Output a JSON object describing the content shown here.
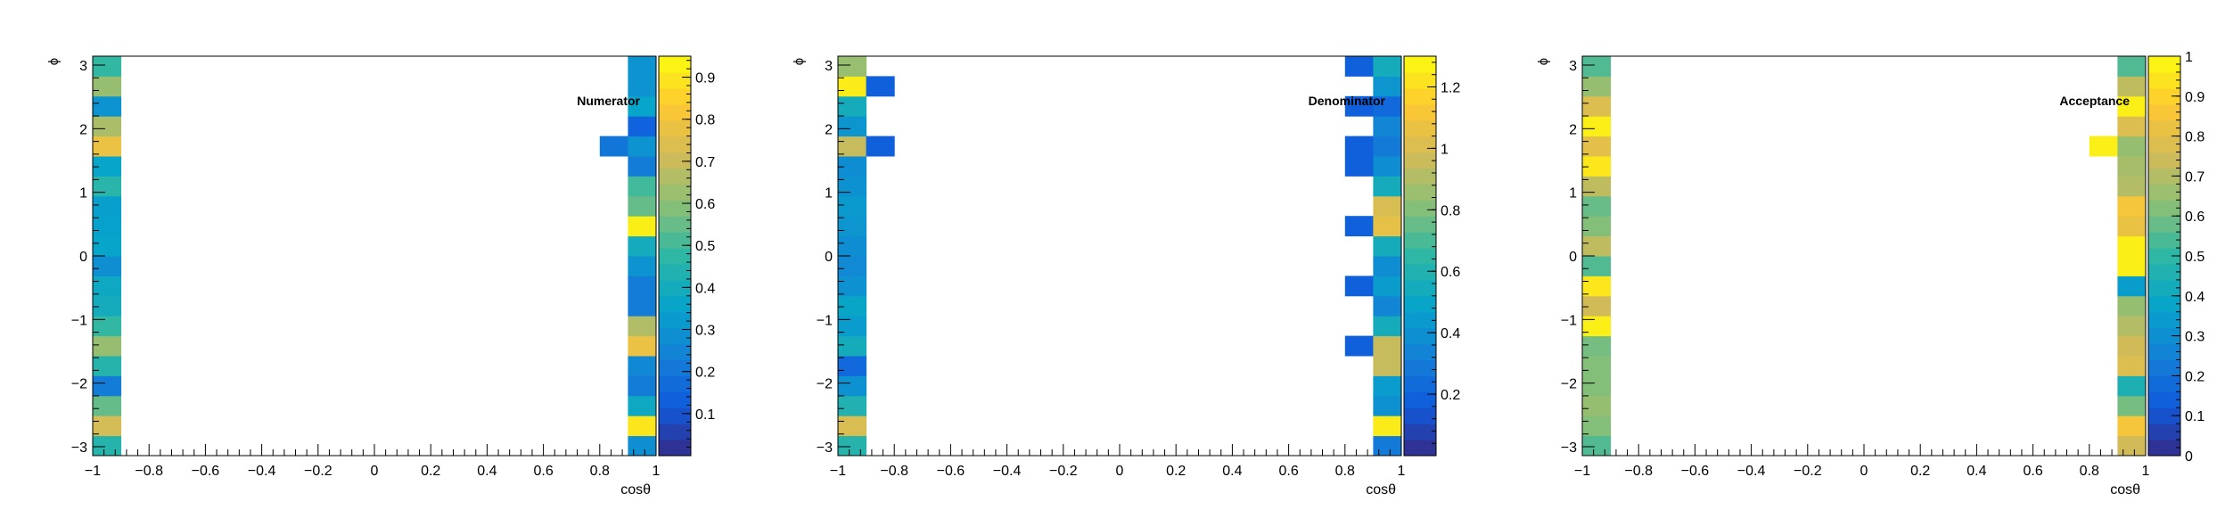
{
  "chart_data": [
    {
      "type": "heatmap",
      "title": "Numerator",
      "xlabel": "cosθ",
      "ylabel": "ϕ",
      "xlim": [
        -1,
        1
      ],
      "ylim": [
        -3.14,
        3.14
      ],
      "x_ticks": [
        "−1",
        "−0.8",
        "−0.6",
        "−0.4",
        "−0.2",
        "0",
        "0.2",
        "0.4",
        "0.6",
        "0.8",
        "1"
      ],
      "y_ticks": [
        "−3",
        "−2",
        "−1",
        "0",
        "1",
        "2",
        "3"
      ],
      "zlim": [
        0,
        0.95
      ],
      "z_ticks": [
        "0.1",
        "0.2",
        "0.3",
        "0.4",
        "0.5",
        "0.6",
        "0.7",
        "0.8",
        "0.9"
      ],
      "x_bins": 20,
      "y_bins": 20,
      "cells": [
        {
          "x_bin": 0,
          "y_bin": 0,
          "value": 0.45
        },
        {
          "x_bin": 0,
          "y_bin": 1,
          "value": 0.72
        },
        {
          "x_bin": 0,
          "y_bin": 2,
          "value": 0.55
        },
        {
          "x_bin": 0,
          "y_bin": 3,
          "value": 0.22
        },
        {
          "x_bin": 0,
          "y_bin": 4,
          "value": 0.45
        },
        {
          "x_bin": 0,
          "y_bin": 5,
          "value": 0.62
        },
        {
          "x_bin": 0,
          "y_bin": 6,
          "value": 0.48
        },
        {
          "x_bin": 0,
          "y_bin": 7,
          "value": 0.4
        },
        {
          "x_bin": 0,
          "y_bin": 8,
          "value": 0.38
        },
        {
          "x_bin": 0,
          "y_bin": 9,
          "value": 0.28
        },
        {
          "x_bin": 0,
          "y_bin": 10,
          "value": 0.36
        },
        {
          "x_bin": 0,
          "y_bin": 11,
          "value": 0.35
        },
        {
          "x_bin": 0,
          "y_bin": 12,
          "value": 0.34
        },
        {
          "x_bin": 0,
          "y_bin": 13,
          "value": 0.46
        },
        {
          "x_bin": 0,
          "y_bin": 14,
          "value": 0.36
        },
        {
          "x_bin": 0,
          "y_bin": 15,
          "value": 0.78
        },
        {
          "x_bin": 0,
          "y_bin": 16,
          "value": 0.65
        },
        {
          "x_bin": 0,
          "y_bin": 17,
          "value": 0.3
        },
        {
          "x_bin": 0,
          "y_bin": 18,
          "value": 0.62
        },
        {
          "x_bin": 0,
          "y_bin": 19,
          "value": 0.48
        },
        {
          "x_bin": 18,
          "y_bin": 15,
          "value": 0.2
        },
        {
          "x_bin": 19,
          "y_bin": 0,
          "value": 0.28
        },
        {
          "x_bin": 19,
          "y_bin": 1,
          "value": 0.9
        },
        {
          "x_bin": 19,
          "y_bin": 2,
          "value": 0.38
        },
        {
          "x_bin": 19,
          "y_bin": 3,
          "value": 0.22
        },
        {
          "x_bin": 19,
          "y_bin": 4,
          "value": 0.26
        },
        {
          "x_bin": 19,
          "y_bin": 5,
          "value": 0.78
        },
        {
          "x_bin": 19,
          "y_bin": 6,
          "value": 0.66
        },
        {
          "x_bin": 19,
          "y_bin": 7,
          "value": 0.22
        },
        {
          "x_bin": 19,
          "y_bin": 8,
          "value": 0.22
        },
        {
          "x_bin": 19,
          "y_bin": 9,
          "value": 0.3
        },
        {
          "x_bin": 19,
          "y_bin": 10,
          "value": 0.4
        },
        {
          "x_bin": 19,
          "y_bin": 11,
          "value": 0.92
        },
        {
          "x_bin": 19,
          "y_bin": 12,
          "value": 0.55
        },
        {
          "x_bin": 19,
          "y_bin": 13,
          "value": 0.5
        },
        {
          "x_bin": 19,
          "y_bin": 14,
          "value": 0.22
        },
        {
          "x_bin": 19,
          "y_bin": 15,
          "value": 0.3
        },
        {
          "x_bin": 19,
          "y_bin": 16,
          "value": 0.14
        },
        {
          "x_bin": 19,
          "y_bin": 17,
          "value": 0.36
        },
        {
          "x_bin": 19,
          "y_bin": 18,
          "value": 0.3
        },
        {
          "x_bin": 19,
          "y_bin": 19,
          "value": 0.3
        }
      ]
    },
    {
      "type": "heatmap",
      "title": "Denominator",
      "xlabel": "cosθ",
      "ylabel": "ϕ",
      "xlim": [
        -1,
        1
      ],
      "ylim": [
        -3.14,
        3.14
      ],
      "x_ticks": [
        "−1",
        "−0.8",
        "−0.6",
        "−0.4",
        "−0.2",
        "0",
        "0.2",
        "0.4",
        "0.6",
        "0.8",
        "1"
      ],
      "y_ticks": [
        "−3",
        "−2",
        "−1",
        "0",
        "1",
        "2",
        "3"
      ],
      "zlim": [
        0,
        1.3
      ],
      "z_ticks": [
        "0.2",
        "0.4",
        "0.6",
        "0.8",
        "1",
        "1.2"
      ],
      "x_bins": 20,
      "y_bins": 20,
      "cells": [
        {
          "x_bin": 0,
          "y_bin": 0,
          "value": 0.62
        },
        {
          "x_bin": 0,
          "y_bin": 1,
          "value": 1.0
        },
        {
          "x_bin": 0,
          "y_bin": 2,
          "value": 0.6
        },
        {
          "x_bin": 0,
          "y_bin": 3,
          "value": 0.4
        },
        {
          "x_bin": 0,
          "y_bin": 4,
          "value": 0.22
        },
        {
          "x_bin": 0,
          "y_bin": 5,
          "value": 0.55
        },
        {
          "x_bin": 0,
          "y_bin": 6,
          "value": 0.45
        },
        {
          "x_bin": 0,
          "y_bin": 7,
          "value": 0.5
        },
        {
          "x_bin": 0,
          "y_bin": 8,
          "value": 0.4
        },
        {
          "x_bin": 0,
          "y_bin": 9,
          "value": 0.36
        },
        {
          "x_bin": 0,
          "y_bin": 10,
          "value": 0.38
        },
        {
          "x_bin": 0,
          "y_bin": 11,
          "value": 0.42
        },
        {
          "x_bin": 0,
          "y_bin": 12,
          "value": 0.44
        },
        {
          "x_bin": 0,
          "y_bin": 13,
          "value": 0.4
        },
        {
          "x_bin": 0,
          "y_bin": 14,
          "value": 0.38
        },
        {
          "x_bin": 0,
          "y_bin": 15,
          "value": 0.95
        },
        {
          "x_bin": 0,
          "y_bin": 16,
          "value": 0.42
        },
        {
          "x_bin": 0,
          "y_bin": 17,
          "value": 0.55
        },
        {
          "x_bin": 0,
          "y_bin": 18,
          "value": 1.25
        },
        {
          "x_bin": 0,
          "y_bin": 19,
          "value": 0.85
        },
        {
          "x_bin": 1,
          "y_bin": 15,
          "value": 0.18
        },
        {
          "x_bin": 1,
          "y_bin": 18,
          "value": 0.18
        },
        {
          "x_bin": 18,
          "y_bin": 5,
          "value": 0.18
        },
        {
          "x_bin": 18,
          "y_bin": 8,
          "value": 0.18
        },
        {
          "x_bin": 18,
          "y_bin": 11,
          "value": 0.18
        },
        {
          "x_bin": 18,
          "y_bin": 14,
          "value": 0.18
        },
        {
          "x_bin": 18,
          "y_bin": 15,
          "value": 0.18
        },
        {
          "x_bin": 18,
          "y_bin": 17,
          "value": 0.18
        },
        {
          "x_bin": 18,
          "y_bin": 19,
          "value": 0.18
        },
        {
          "x_bin": 19,
          "y_bin": 0,
          "value": 0.3
        },
        {
          "x_bin": 19,
          "y_bin": 1,
          "value": 1.25
        },
        {
          "x_bin": 19,
          "y_bin": 2,
          "value": 0.4
        },
        {
          "x_bin": 19,
          "y_bin": 3,
          "value": 0.45
        },
        {
          "x_bin": 19,
          "y_bin": 4,
          "value": 0.95
        },
        {
          "x_bin": 19,
          "y_bin": 5,
          "value": 0.95
        },
        {
          "x_bin": 19,
          "y_bin": 6,
          "value": 0.55
        },
        {
          "x_bin": 19,
          "y_bin": 7,
          "value": 0.35
        },
        {
          "x_bin": 19,
          "y_bin": 8,
          "value": 0.45
        },
        {
          "x_bin": 19,
          "y_bin": 9,
          "value": 0.38
        },
        {
          "x_bin": 19,
          "y_bin": 10,
          "value": 0.55
        },
        {
          "x_bin": 19,
          "y_bin": 11,
          "value": 1.05
        },
        {
          "x_bin": 19,
          "y_bin": 12,
          "value": 1.0
        },
        {
          "x_bin": 19,
          "y_bin": 13,
          "value": 0.55
        },
        {
          "x_bin": 19,
          "y_bin": 14,
          "value": 0.38
        },
        {
          "x_bin": 19,
          "y_bin": 15,
          "value": 0.3
        },
        {
          "x_bin": 19,
          "y_bin": 16,
          "value": 0.35
        },
        {
          "x_bin": 19,
          "y_bin": 17,
          "value": 0.22
        },
        {
          "x_bin": 19,
          "y_bin": 18,
          "value": 0.42
        },
        {
          "x_bin": 19,
          "y_bin": 19,
          "value": 0.55
        }
      ]
    },
    {
      "type": "heatmap",
      "title": "Acceptance",
      "xlabel": "cosθ",
      "ylabel": "ϕ",
      "xlim": [
        -1,
        1
      ],
      "ylim": [
        -3.14,
        3.14
      ],
      "x_ticks": [
        "−1",
        "−0.8",
        "−0.6",
        "−0.4",
        "−0.2",
        "0",
        "0.2",
        "0.4",
        "0.6",
        "0.8",
        "1"
      ],
      "y_ticks": [
        "−3",
        "−2",
        "−1",
        "0",
        "1",
        "2",
        "3"
      ],
      "zlim": [
        0,
        1
      ],
      "z_ticks": [
        "0",
        "0.1",
        "0.2",
        "0.3",
        "0.4",
        "0.5",
        "0.6",
        "0.7",
        "0.8",
        "0.9",
        "1"
      ],
      "x_bins": 20,
      "y_bins": 20,
      "cells": [
        {
          "x_bin": 0,
          "y_bin": 0,
          "value": 0.55
        },
        {
          "x_bin": 0,
          "y_bin": 1,
          "value": 0.62
        },
        {
          "x_bin": 0,
          "y_bin": 2,
          "value": 0.65
        },
        {
          "x_bin": 0,
          "y_bin": 3,
          "value": 0.62
        },
        {
          "x_bin": 0,
          "y_bin": 4,
          "value": 0.62
        },
        {
          "x_bin": 0,
          "y_bin": 5,
          "value": 0.6
        },
        {
          "x_bin": 0,
          "y_bin": 6,
          "value": 0.97
        },
        {
          "x_bin": 0,
          "y_bin": 7,
          "value": 0.75
        },
        {
          "x_bin": 0,
          "y_bin": 8,
          "value": 0.95
        },
        {
          "x_bin": 0,
          "y_bin": 9,
          "value": 0.55
        },
        {
          "x_bin": 0,
          "y_bin": 10,
          "value": 0.72
        },
        {
          "x_bin": 0,
          "y_bin": 11,
          "value": 0.62
        },
        {
          "x_bin": 0,
          "y_bin": 12,
          "value": 0.58
        },
        {
          "x_bin": 0,
          "y_bin": 13,
          "value": 0.72
        },
        {
          "x_bin": 0,
          "y_bin": 14,
          "value": 0.95
        },
        {
          "x_bin": 0,
          "y_bin": 15,
          "value": 0.8
        },
        {
          "x_bin": 0,
          "y_bin": 16,
          "value": 0.97
        },
        {
          "x_bin": 0,
          "y_bin": 17,
          "value": 0.78
        },
        {
          "x_bin": 0,
          "y_bin": 18,
          "value": 0.65
        },
        {
          "x_bin": 0,
          "y_bin": 19,
          "value": 0.55
        },
        {
          "x_bin": 18,
          "y_bin": 15,
          "value": 0.97
        },
        {
          "x_bin": 19,
          "y_bin": 0,
          "value": 0.75
        },
        {
          "x_bin": 19,
          "y_bin": 1,
          "value": 0.85
        },
        {
          "x_bin": 19,
          "y_bin": 2,
          "value": 0.6
        },
        {
          "x_bin": 19,
          "y_bin": 3,
          "value": 0.45
        },
        {
          "x_bin": 19,
          "y_bin": 4,
          "value": 0.78
        },
        {
          "x_bin": 19,
          "y_bin": 5,
          "value": 0.75
        },
        {
          "x_bin": 19,
          "y_bin": 6,
          "value": 0.7
        },
        {
          "x_bin": 19,
          "y_bin": 7,
          "value": 0.65
        },
        {
          "x_bin": 19,
          "y_bin": 8,
          "value": 0.35
        },
        {
          "x_bin": 19,
          "y_bin": 9,
          "value": 0.97
        },
        {
          "x_bin": 19,
          "y_bin": 10,
          "value": 0.97
        },
        {
          "x_bin": 19,
          "y_bin": 11,
          "value": 0.82
        },
        {
          "x_bin": 19,
          "y_bin": 12,
          "value": 0.85
        },
        {
          "x_bin": 19,
          "y_bin": 13,
          "value": 0.7
        },
        {
          "x_bin": 19,
          "y_bin": 14,
          "value": 0.68
        },
        {
          "x_bin": 19,
          "y_bin": 15,
          "value": 0.65
        },
        {
          "x_bin": 19,
          "y_bin": 16,
          "value": 0.78
        },
        {
          "x_bin": 19,
          "y_bin": 17,
          "value": 0.97
        },
        {
          "x_bin": 19,
          "y_bin": 18,
          "value": 0.72
        },
        {
          "x_bin": 19,
          "y_bin": 19,
          "value": 0.55
        }
      ]
    }
  ]
}
